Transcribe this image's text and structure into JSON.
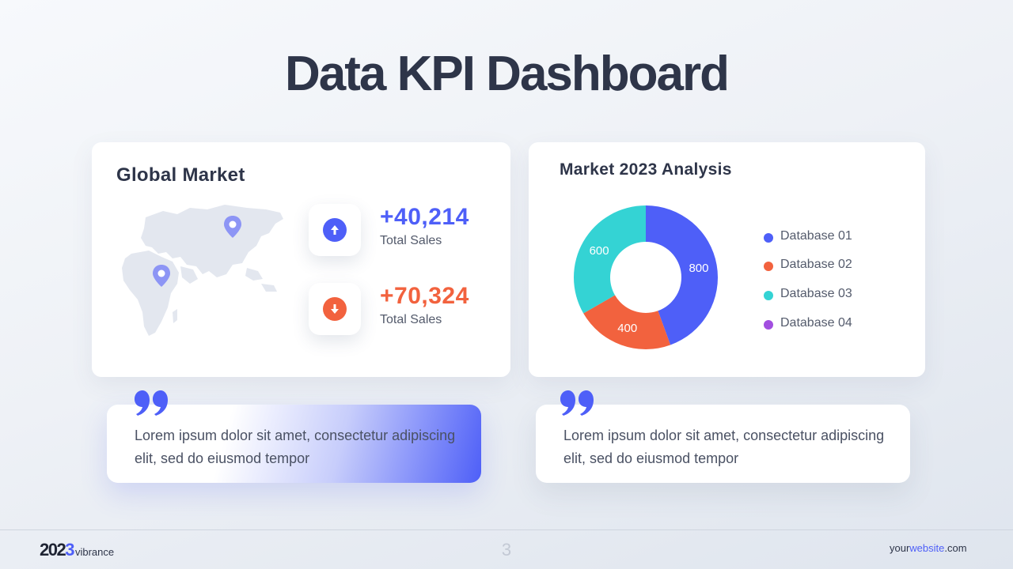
{
  "title": "Data KPI Dashboard",
  "global_market": {
    "title": "Global Market",
    "kpis": [
      {
        "value": "+40,214",
        "label": "Total Sales",
        "direction": "up",
        "color": "#4e5ff8"
      },
      {
        "value": "+70,324",
        "label": "Total Sales",
        "direction": "down",
        "color": "#f2623e"
      }
    ]
  },
  "analysis": {
    "title": "Market 2023 Analysis"
  },
  "chart_data": {
    "type": "pie",
    "donut": true,
    "slices": [
      {
        "name": "Database 01",
        "value": 800,
        "color": "#4e5ff8"
      },
      {
        "name": "Database 02",
        "value": 400,
        "color": "#f2623e"
      },
      {
        "name": "Database 03",
        "value": 600,
        "color": "#34d3d4"
      },
      {
        "name": "Database 04",
        "value": 0,
        "color": "#a24fe0"
      }
    ],
    "legend": [
      "Database 01",
      "Database 02",
      "Database 03",
      "Database 04"
    ],
    "legend_position": "right"
  },
  "quotes": [
    {
      "text": "Lorem ipsum dolor sit amet, consectetur adipiscing elit, sed do eiusmod tempor"
    },
    {
      "text": "Lorem ipsum dolor sit amet, consectetur adipiscing elit, sed do eiusmod tempor"
    }
  ],
  "footer": {
    "brand_year_a": "202",
    "brand_year_b": "3",
    "brand_name": "vibrance",
    "page_number": "3",
    "website_a": "your",
    "website_b": "website",
    "website_c": ".com"
  },
  "colors": {
    "accent": "#4e5ff8",
    "negative": "#f2623e",
    "teal": "#34d3d4",
    "purple": "#a24fe0",
    "text_dark": "#2e3549"
  }
}
